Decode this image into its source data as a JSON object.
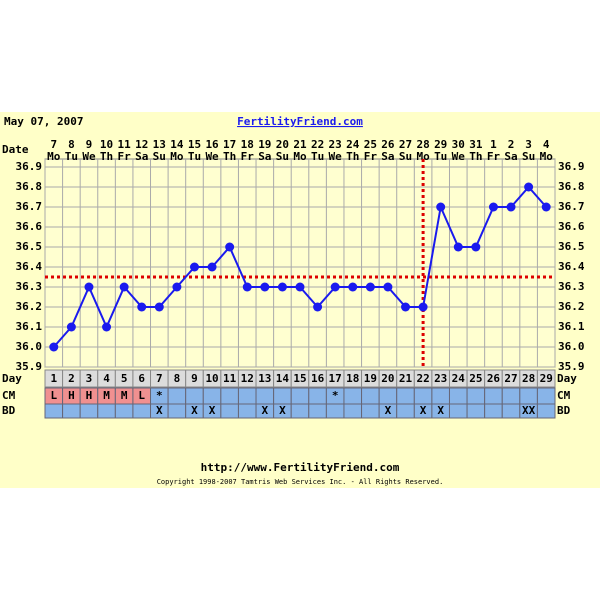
{
  "chart_data": {
    "type": "line",
    "header_date": "May 07, 2007",
    "site": "FertilityFriend.com",
    "date_label": "Date",
    "day_label": "Day",
    "cm_label": "CM",
    "bd_label": "BD",
    "x": [
      1,
      2,
      3,
      4,
      5,
      6,
      7,
      8,
      9,
      10,
      11,
      12,
      13,
      14,
      15,
      16,
      17,
      18,
      19,
      20,
      21,
      22,
      23,
      24,
      25,
      26,
      27,
      28,
      29
    ],
    "dates": [
      7,
      8,
      9,
      10,
      11,
      12,
      13,
      14,
      15,
      16,
      17,
      18,
      19,
      20,
      21,
      22,
      23,
      24,
      25,
      26,
      27,
      28,
      29,
      30,
      31,
      1,
      2,
      3,
      4
    ],
    "weekdays": [
      "Mo",
      "Tu",
      "We",
      "Th",
      "Fr",
      "Sa",
      "Su",
      "Mo",
      "Tu",
      "We",
      "Th",
      "Fr",
      "Sa",
      "Su",
      "Mo",
      "Tu",
      "We",
      "Th",
      "Fr",
      "Sa",
      "Su",
      "Mo",
      "Tu",
      "We",
      "Th",
      "Fr",
      "Sa",
      "Su",
      "Mo"
    ],
    "series": [
      {
        "color": "#1a1aee",
        "values": [
          36.0,
          36.1,
          36.3,
          36.1,
          36.3,
          36.2,
          36.2,
          36.3,
          36.4,
          36.4,
          36.5,
          36.3,
          36.3,
          36.3,
          36.3,
          36.2,
          36.3,
          36.3,
          36.3,
          36.3,
          36.2,
          36.2,
          36.7,
          36.5,
          36.5,
          36.7,
          36.7,
          36.8,
          36.7
        ]
      }
    ],
    "cm": [
      "L",
      "H",
      "H",
      "M",
      "M",
      "L",
      "*",
      null,
      null,
      null,
      null,
      null,
      null,
      null,
      null,
      null,
      "*",
      null,
      null,
      null,
      null,
      null,
      null,
      null,
      null,
      null,
      null,
      null,
      null
    ],
    "bd": [
      null,
      null,
      null,
      null,
      null,
      null,
      "X",
      null,
      "X",
      "X",
      null,
      null,
      "X",
      "X",
      null,
      null,
      null,
      null,
      null,
      "X",
      null,
      "X",
      "X",
      null,
      null,
      null,
      null,
      "XX",
      null
    ],
    "coverline": 36.35,
    "ovulation_day": 22,
    "ylim": [
      35.9,
      36.9
    ],
    "yticks": [
      35.9,
      {
        "value": 36.0,
        "label": "36.0"
      },
      36.1,
      36.2,
      36.3,
      36.4,
      36.5,
      36.6,
      36.7,
      36.8,
      36.9
    ],
    "grid": true,
    "footer_url": "http://www.FertilityFriend.com",
    "copyright": "Copyright 1998-2007 Tamtris Web Services Inc. - All Rights Reserved."
  }
}
